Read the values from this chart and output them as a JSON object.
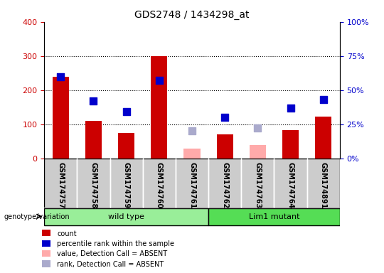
{
  "title": "GDS2748 / 1434298_at",
  "samples": [
    "GSM174757",
    "GSM174758",
    "GSM174759",
    "GSM174760",
    "GSM174761",
    "GSM174762",
    "GSM174763",
    "GSM174764",
    "GSM174891"
  ],
  "count_values": [
    240,
    110,
    75,
    300,
    null,
    70,
    null,
    82,
    122
  ],
  "count_absent_values": [
    null,
    null,
    null,
    null,
    28,
    null,
    38,
    null,
    null
  ],
  "rank_values": [
    60,
    42,
    34,
    57,
    null,
    30,
    null,
    37,
    43
  ],
  "rank_absent_values": [
    null,
    null,
    null,
    null,
    20,
    null,
    22,
    null,
    null
  ],
  "wild_type_indices": [
    0,
    1,
    2,
    3,
    4
  ],
  "lim1_mutant_indices": [
    5,
    6,
    7,
    8
  ],
  "ylim_left": [
    0,
    400
  ],
  "ylim_right": [
    0,
    100
  ],
  "yticks_left": [
    0,
    100,
    200,
    300,
    400
  ],
  "yticks_right": [
    0,
    25,
    50,
    75,
    100
  ],
  "bar_color": "#cc0000",
  "bar_absent_color": "#ffaaaa",
  "rank_color": "#0000cc",
  "rank_absent_color": "#aaaacc",
  "wt_bg_color": "#99ee99",
  "mut_bg_color": "#55dd55",
  "label_bg_color": "#cccccc",
  "bar_width": 0.5,
  "rank_marker_size": 60
}
